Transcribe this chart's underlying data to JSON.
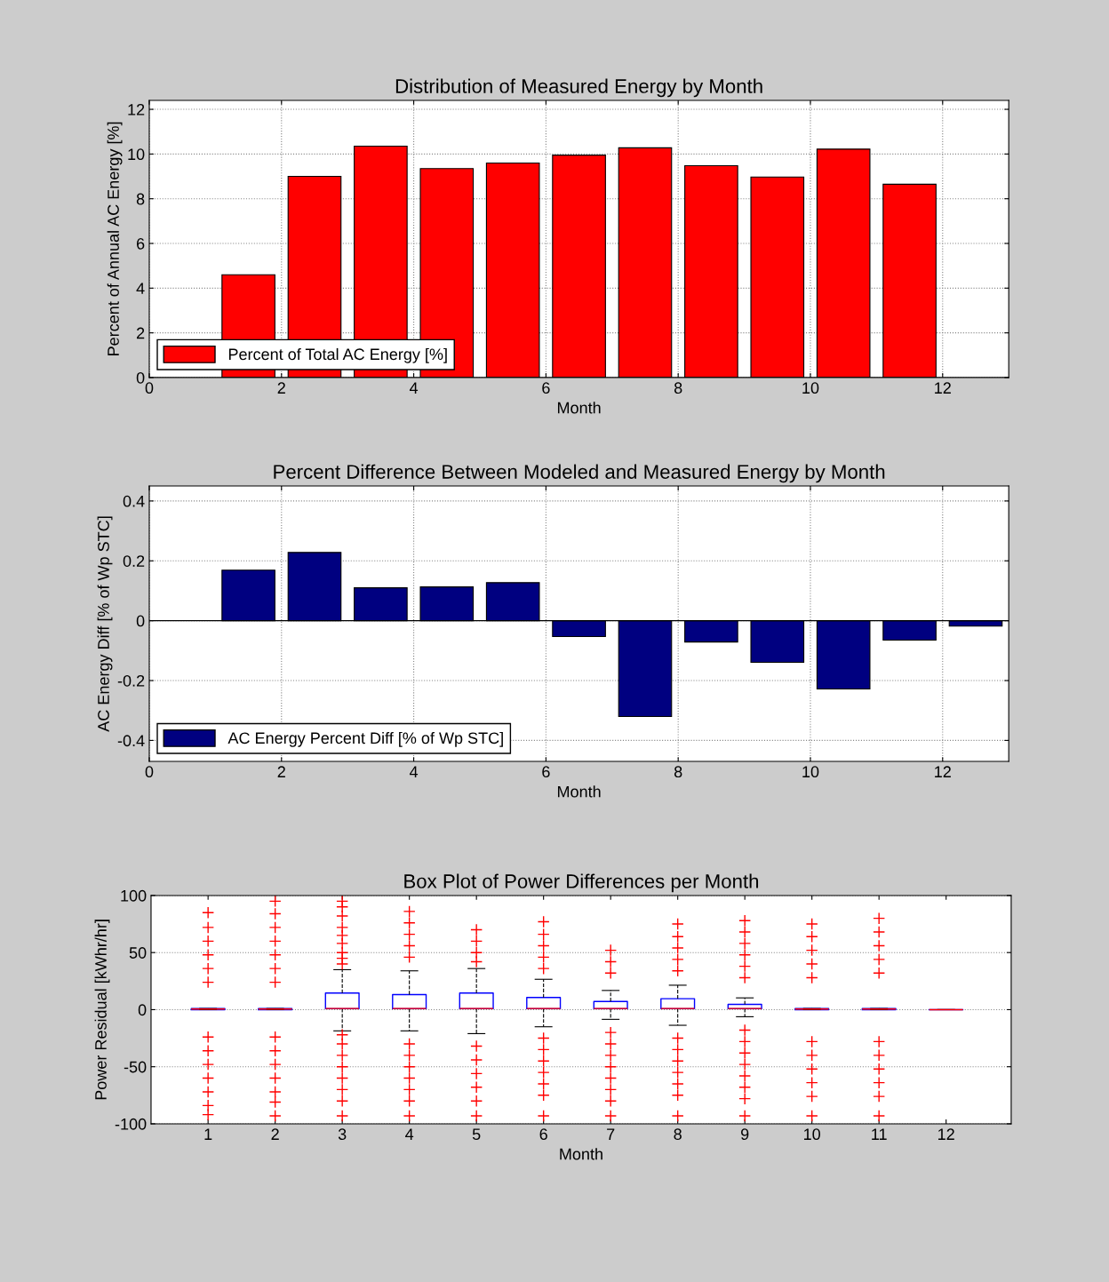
{
  "chart_data": [
    {
      "type": "bar",
      "title": "Distribution of Measured Energy by Month",
      "xlabel": "Month",
      "ylabel": "Percent of Annual AC Energy [%]",
      "x": [
        1.5,
        2.5,
        3.5,
        4.5,
        5.5,
        6.5,
        7.5,
        8.5,
        9.5,
        10.5,
        11.5
      ],
      "series": [
        {
          "name": "Percent of Total AC Energy [%]",
          "color": "#ff0000",
          "values": [
            4.6,
            9.0,
            10.35,
            9.35,
            9.6,
            9.95,
            10.28,
            9.48,
            8.97,
            10.22,
            8.65
          ]
        }
      ],
      "xlim": [
        0,
        13
      ],
      "xticks": [
        0,
        2,
        4,
        6,
        8,
        10,
        12
      ],
      "ylim": [
        0,
        12.4
      ],
      "yticks": [
        0,
        2,
        4,
        6,
        8,
        10,
        12
      ],
      "grid": true,
      "legend": "bottom left"
    },
    {
      "type": "bar",
      "title": "Percent Difference Between Modeled and Measured Energy by Month",
      "xlabel": "Month",
      "ylabel": "AC Energy Diff [% of Wp STC]",
      "x": [
        1.5,
        2.5,
        3.5,
        4.5,
        5.5,
        6.5,
        7.5,
        8.5,
        9.5,
        10.5,
        11.5,
        12.5
      ],
      "series": [
        {
          "name": "AC Energy Percent Diff [% of Wp STC]",
          "color": "#000080",
          "values": [
            0.169,
            0.228,
            0.11,
            0.113,
            0.127,
            -0.053,
            -0.32,
            -0.071,
            -0.139,
            -0.228,
            -0.065,
            -0.018
          ]
        }
      ],
      "xlim": [
        0,
        13
      ],
      "xticks": [
        0,
        2,
        4,
        6,
        8,
        10,
        12
      ],
      "ylim": [
        -0.47,
        0.45
      ],
      "yticks": [
        -0.4,
        -0.2,
        0,
        0.2,
        0.4
      ],
      "grid": true,
      "legend": "bottom left"
    },
    {
      "type": "box",
      "title": "Box Plot of Power Differences per Month",
      "xlabel": "Month",
      "ylabel": "Power Residual [kWhr/hr]",
      "categories": [
        "1",
        "2",
        "3",
        "4",
        "5",
        "6",
        "7",
        "8",
        "9",
        "10",
        "11",
        "12"
      ],
      "series": [
        {
          "color": "#0000ff",
          "boxes": [
            {
              "low": 0,
              "q1": 0,
              "median": 0.5,
              "q3": 1,
              "high": 1,
              "outliers": [
                85,
                72,
                60,
                48,
                36,
                24,
                -24,
                -36,
                -48,
                -60,
                -72,
                -84,
                -92
              ]
            },
            {
              "low": 0,
              "q1": 0,
              "median": 0.5,
              "q3": 1,
              "high": 1,
              "outliers": [
                95,
                84,
                72,
                60,
                48,
                36,
                24,
                -24,
                -36,
                -48,
                -60,
                -72,
                -81,
                -93
              ]
            },
            {
              "low": -18.6,
              "q1": 0.8,
              "median": 1,
              "q3": 14.5,
              "high": 35,
              "outliers": [
                95,
                90,
                82,
                72,
                65,
                58,
                50,
                45,
                40,
                -22,
                -30,
                -40,
                -50,
                -60,
                -70,
                -80,
                -93
              ]
            },
            {
              "low": -18.6,
              "q1": 0.8,
              "median": 1,
              "q3": 13.2,
              "high": 34,
              "outliers": [
                86,
                76,
                66,
                56,
                46,
                -30,
                -40,
                -50,
                -60,
                -70,
                -80,
                -93
              ]
            },
            {
              "low": -21,
              "q1": 0.8,
              "median": 1,
              "q3": 14.5,
              "high": 36,
              "outliers": [
                70,
                60,
                50,
                42,
                -32,
                -44,
                -56,
                -68,
                -80,
                -93
              ]
            },
            {
              "low": -15,
              "q1": 0.8,
              "median": 1,
              "q3": 10.6,
              "high": 26.6,
              "outliers": [
                77,
                66,
                56,
                46,
                36,
                -25,
                -35,
                -45,
                -55,
                -65,
                -75,
                -93
              ]
            },
            {
              "low": -8.5,
              "q1": 0.8,
              "median": 1,
              "q3": 7.2,
              "high": 16.8,
              "outliers": [
                52,
                42,
                32,
                -20,
                -30,
                -40,
                -50,
                -60,
                -70,
                -80,
                -93
              ]
            },
            {
              "low": -13.7,
              "q1": 0.8,
              "median": 1,
              "q3": 9.6,
              "high": 21.4,
              "outliers": [
                75,
                64,
                54,
                44,
                34,
                -25,
                -35,
                -45,
                -55,
                -65,
                -75,
                -93
              ]
            },
            {
              "low": -6.2,
              "q1": 0.8,
              "median": 1,
              "q3": 4.6,
              "high": 10.3,
              "outliers": [
                78,
                68,
                58,
                48,
                38,
                28,
                -18,
                -28,
                -38,
                -48,
                -58,
                -68,
                -78,
                -93
              ]
            },
            {
              "low": 0,
              "q1": 0,
              "median": 0.5,
              "q3": 1,
              "high": 1,
              "outliers": [
                75,
                64,
                52,
                40,
                28,
                -28,
                -40,
                -52,
                -64,
                -76,
                -93
              ]
            },
            {
              "low": 0,
              "q1": 0,
              "median": 0.5,
              "q3": 1,
              "high": 1,
              "outliers": [
                80,
                68,
                56,
                44,
                32,
                -28,
                -40,
                -52,
                -64,
                -76,
                -93
              ]
            },
            {
              "low": 0,
              "q1": 0,
              "median": 0,
              "q3": 0,
              "high": 0
            }
          ]
        }
      ],
      "ylim": [
        -100,
        100
      ],
      "yticks": [
        -100,
        -50,
        0,
        50,
        100
      ],
      "grid": "y"
    }
  ]
}
